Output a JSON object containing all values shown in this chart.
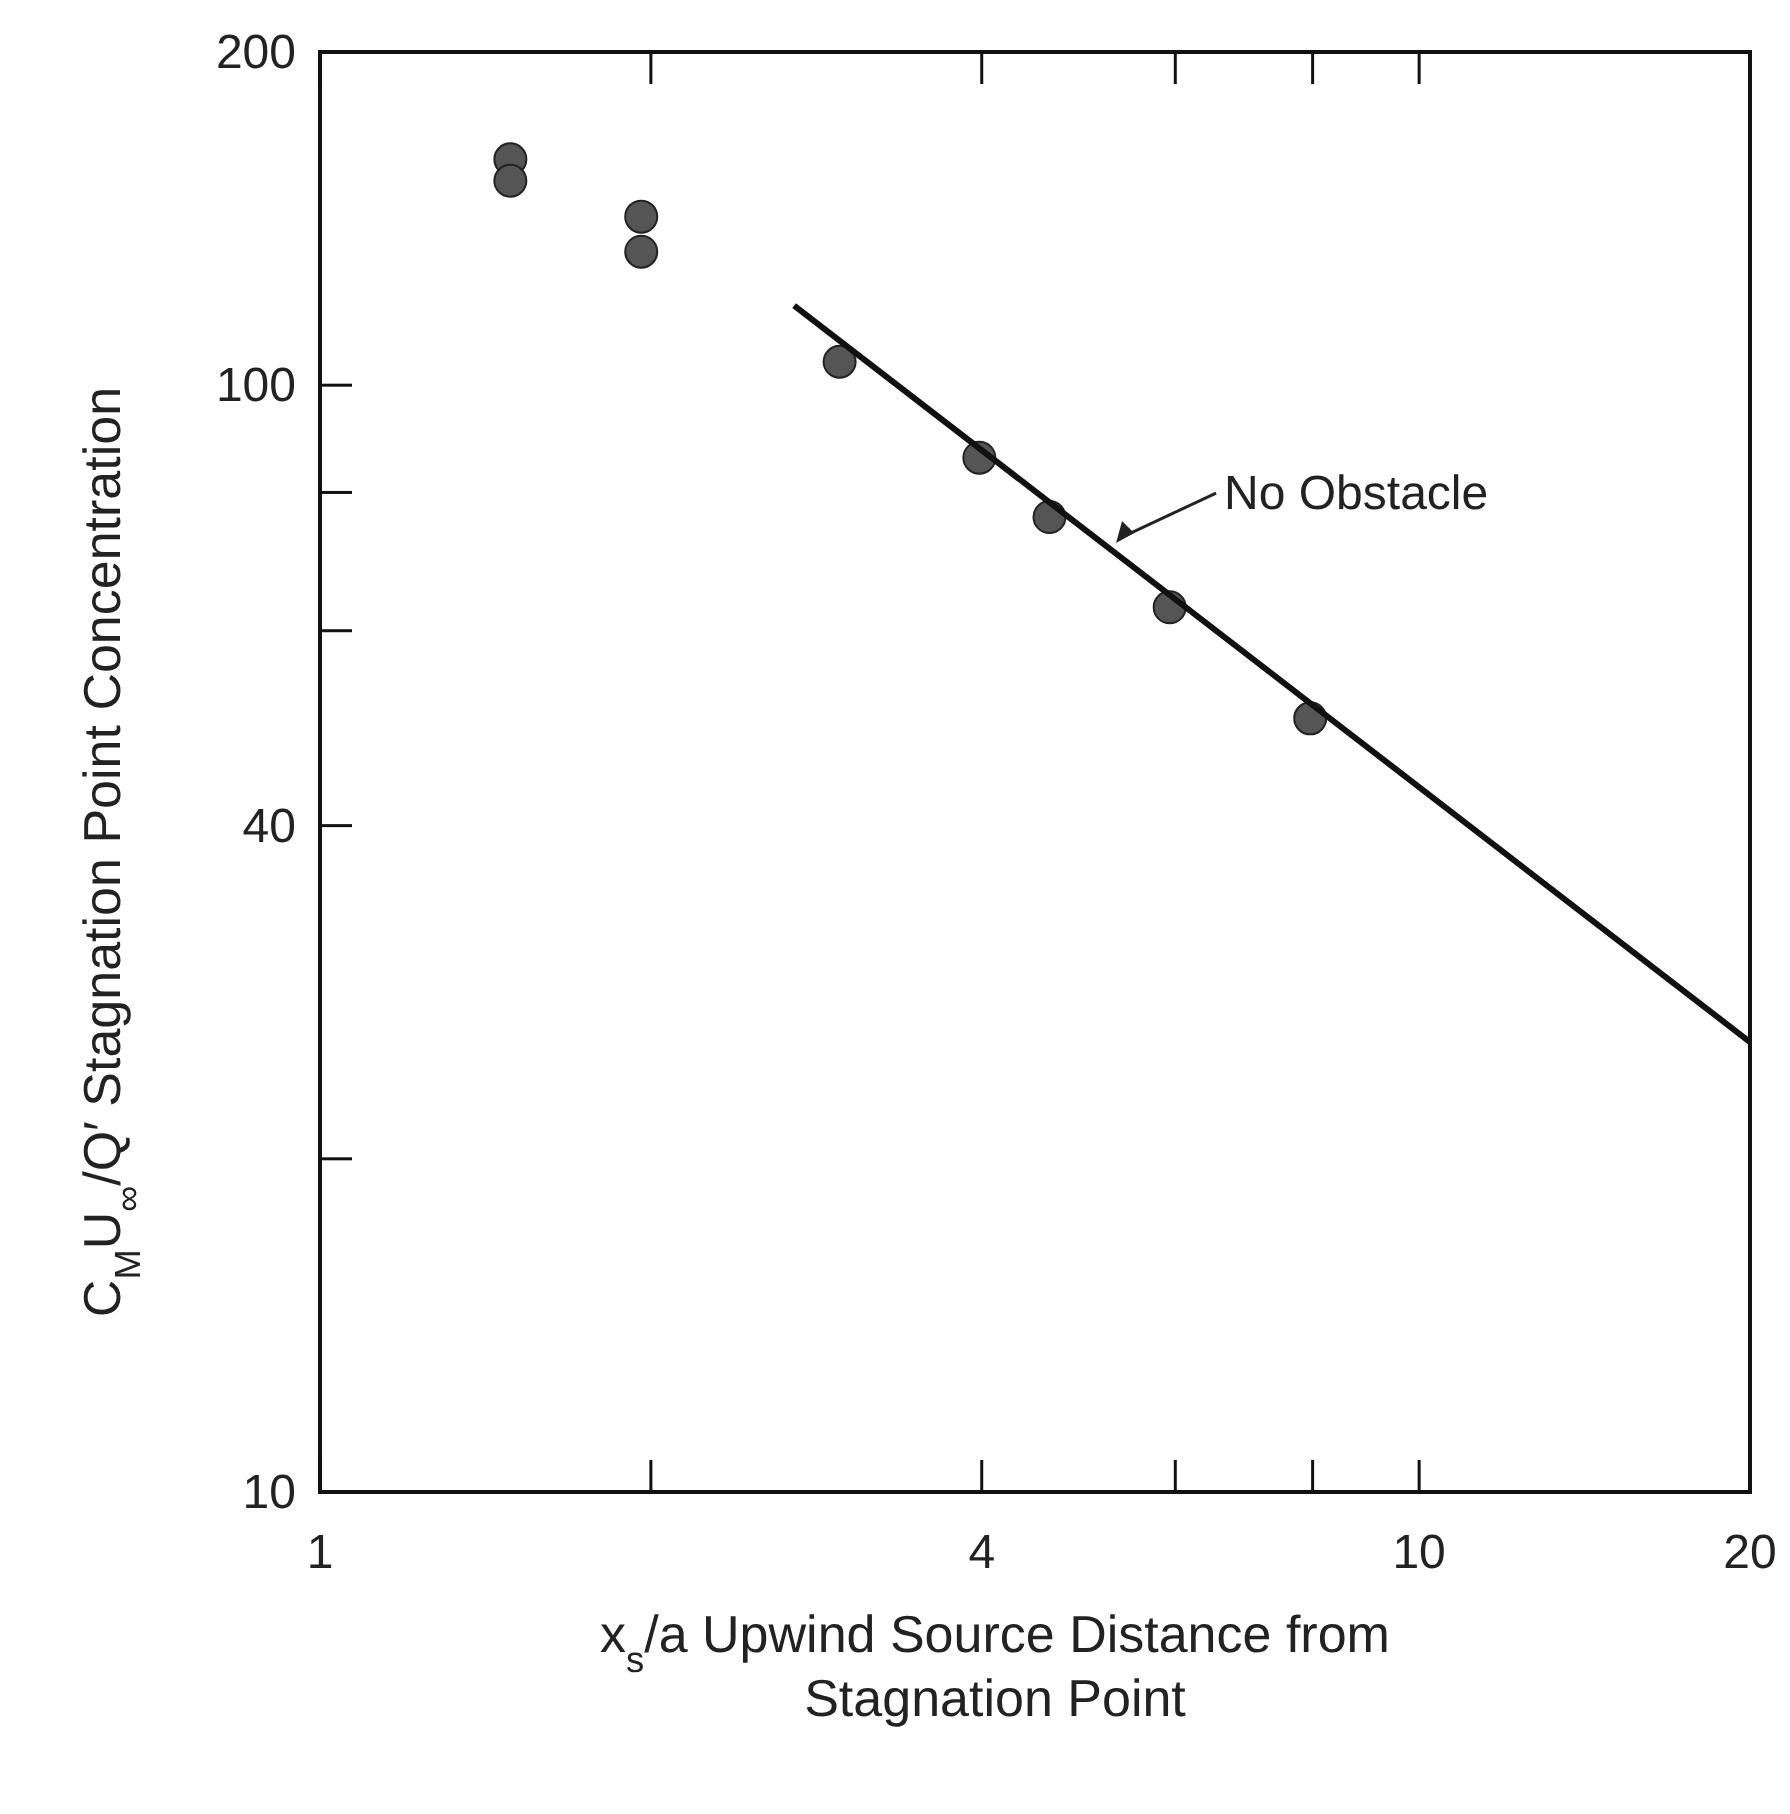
{
  "chart_data": {
    "type": "scatter",
    "xlabel": "x$_{s}$/a Upwind Source Distance from Stagnation Point",
    "ylabel": "C$_{M}$U$_{∞}$/Q′ Stagnation Point Concentration",
    "log": "xy",
    "xlim": [
      1,
      20
    ],
    "ylim": [
      10,
      200
    ],
    "xticks": [
      1,
      {
        "value": 2,
        "label": null
      },
      4,
      {
        "value": 6,
        "label": null
      },
      {
        "value": 8,
        "label": null
      },
      10,
      20
    ],
    "yticks": [
      10,
      {
        "value": 20,
        "label": null
      },
      40,
      {
        "value": 60,
        "label": null
      },
      {
        "value": 80,
        "label": null
      },
      100,
      200
    ],
    "grid": false,
    "series": [
      {
        "marker": "circle",
        "color": "#555555",
        "x": [
          1.49,
          1.49,
          1.96,
          1.96,
          2.97,
          3.98,
          4.61,
          5.93,
          7.96
        ],
        "values": [
          160,
          153,
          142,
          132,
          105,
          86,
          76,
          63,
          50
        ]
      },
      {
        "type": "line",
        "color": "#111111",
        "line_style": "solid",
        "x": [
          2.7,
          20
        ],
        "values": [
          118,
          25.5
        ]
      }
    ],
    "annotations": [
      {
        "text": "No Obstacle",
        "x": 5.3,
        "y": 72
      }
    ]
  }
}
